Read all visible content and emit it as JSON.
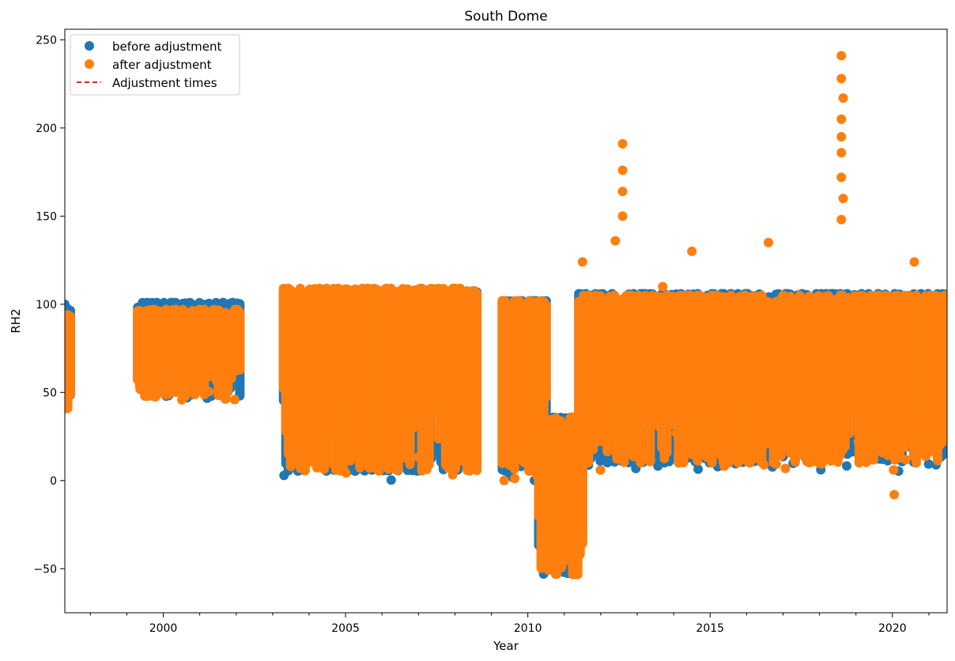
{
  "chart_data": {
    "type": "scatter",
    "title": "South Dome",
    "xlabel": "Year",
    "ylabel": "RH2",
    "xlim": [
      1997.3,
      2021.5
    ],
    "ylim": [
      -75,
      256
    ],
    "x_ticks": [
      2000,
      2005,
      2010,
      2015,
      2020
    ],
    "x_minor_ticks": [
      1998,
      1999,
      2001,
      2002,
      2003,
      2004,
      2006,
      2007,
      2008,
      2009,
      2011,
      2012,
      2013,
      2014,
      2016,
      2017,
      2018,
      2019,
      2021
    ],
    "y_ticks": [
      -50,
      0,
      50,
      100,
      150,
      200,
      250
    ],
    "y_tick_labels": [
      "−50",
      "0",
      "50",
      "100",
      "150",
      "200",
      "250"
    ],
    "grid": false,
    "legend_position": "upper-left",
    "series": [
      {
        "name": "before adjustment",
        "marker": "circle",
        "color": "#1f77b4",
        "segments": [
          {
            "x_start": 1997.3,
            "x_end": 1997.45,
            "low": 38,
            "high": 100
          },
          {
            "x_start": 1999.3,
            "x_end": 2002.1,
            "low": 45,
            "high": 101
          },
          {
            "x_start": 2003.3,
            "x_end": 2008.6,
            "low": 0,
            "high": 107
          },
          {
            "x_start": 2009.3,
            "x_end": 2010.5,
            "low": 0,
            "high": 102
          },
          {
            "x_start": 2010.3,
            "x_end": 2011.5,
            "low": -58,
            "high": 36
          },
          {
            "x_start": 2011.4,
            "x_end": 2021.5,
            "low": 5,
            "high": 106
          }
        ]
      },
      {
        "name": "after adjustment",
        "marker": "circle",
        "color": "#ff7f0e",
        "segments": [
          {
            "x_start": 1997.3,
            "x_end": 1997.45,
            "low": 38,
            "high": 97
          },
          {
            "x_start": 1999.3,
            "x_end": 2002.1,
            "low": 45,
            "high": 100
          },
          {
            "x_start": 2003.3,
            "x_end": 2008.6,
            "low": 0,
            "high": 112
          },
          {
            "x_start": 2009.3,
            "x_end": 2010.5,
            "low": 0,
            "high": 102
          },
          {
            "x_start": 2010.3,
            "x_end": 2011.5,
            "low": -58,
            "high": 36
          },
          {
            "x_start": 2011.4,
            "x_end": 2021.5,
            "low": 5,
            "high": 105
          }
        ],
        "spikes": [
          {
            "x": 2011.5,
            "y": 124
          },
          {
            "x": 2012.6,
            "y": 191
          },
          {
            "x": 2012.6,
            "y": 176
          },
          {
            "x": 2012.6,
            "y": 164
          },
          {
            "x": 2012.6,
            "y": 150
          },
          {
            "x": 2012.4,
            "y": 136
          },
          {
            "x": 2013.7,
            "y": 110
          },
          {
            "x": 2014.5,
            "y": 130
          },
          {
            "x": 2016.6,
            "y": 135
          },
          {
            "x": 2018.6,
            "y": 241
          },
          {
            "x": 2018.6,
            "y": 228
          },
          {
            "x": 2018.65,
            "y": 217
          },
          {
            "x": 2018.6,
            "y": 205
          },
          {
            "x": 2018.6,
            "y": 195
          },
          {
            "x": 2018.6,
            "y": 186
          },
          {
            "x": 2018.6,
            "y": 172
          },
          {
            "x": 2018.65,
            "y": 160
          },
          {
            "x": 2018.6,
            "y": 148
          },
          {
            "x": 2020.6,
            "y": 124
          },
          {
            "x": 2020.05,
            "y": -8
          },
          {
            "x": 2009.35,
            "y": 0
          }
        ]
      },
      {
        "name": "Adjustment times",
        "style": "dashed-line",
        "color": "#d62728"
      }
    ]
  }
}
